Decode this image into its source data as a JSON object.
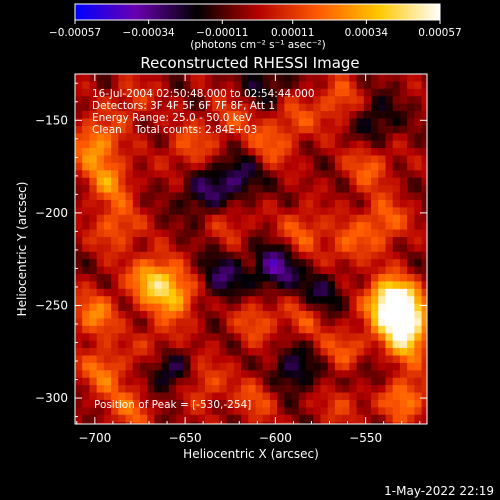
{
  "chart_data": {
    "type": "heatmap",
    "title": "Reconstructed RHESSI Image",
    "xlabel": "Heliocentric X (arcsec)",
    "ylabel": "Heliocentric Y (arcsec)",
    "xlim": [
      -711,
      -516
    ],
    "ylim": [
      -314,
      -125
    ],
    "xticks": [
      {
        "v": -700,
        "label": "−700"
      },
      {
        "v": -650,
        "label": "−650"
      },
      {
        "v": -600,
        "label": "−600"
      },
      {
        "v": -550,
        "label": "−550"
      }
    ],
    "yticks": [
      {
        "v": -150,
        "label": "−150"
      },
      {
        "v": -200,
        "label": "−200"
      },
      {
        "v": -250,
        "label": "−250"
      },
      {
        "v": -300,
        "label": "−300"
      }
    ],
    "colorbar": {
      "min": -0.00057,
      "max": 0.00057,
      "ticks": [
        {
          "v": -0.00057,
          "label": "−0.00057"
        },
        {
          "v": -0.00034,
          "label": "−0.00034"
        },
        {
          "v": -0.00011,
          "label": "−0.00011"
        },
        {
          "v": 0.00011,
          "label": "0.00011"
        },
        {
          "v": 0.00034,
          "label": "0.00034"
        },
        {
          "v": 0.00057,
          "label": "0.00057"
        }
      ],
      "unit": "(photons cm⁻² s⁻¹ asec⁻²)",
      "colors": [
        "#0000ff",
        "#6a00b0",
        "#000000",
        "#b40000",
        "#ff5a00",
        "#ffc800",
        "#ffffff"
      ]
    },
    "annotations": [
      "16-Jul-2004 02:50:48.000 to 02:54:44.000",
      "Detectors: 3F 4F 5F 6F 7F 8F, Att 1",
      "Energy Range: 25.0 - 50.0 keV",
      "Clean    Total counts: 2.84E+03"
    ],
    "peak_label": "Position of Peak = [-530,-254]",
    "peak": [
      -530,
      -254
    ],
    "hotspots": [
      {
        "x": -530,
        "y": -254,
        "v": 0.00057
      },
      {
        "x": -537,
        "y": -247,
        "v": 0.00048
      },
      {
        "x": -527,
        "y": -268,
        "v": 0.0004
      },
      {
        "x": -668,
        "y": -236,
        "v": 0.0004
      },
      {
        "x": -655,
        "y": -245,
        "v": 0.00034
      },
      {
        "x": -700,
        "y": -163,
        "v": 0.00034
      },
      {
        "x": -692,
        "y": -183,
        "v": 0.00028
      },
      {
        "x": -688,
        "y": -208,
        "v": 0.00024
      },
      {
        "x": -700,
        "y": -255,
        "v": 0.00028
      },
      {
        "x": -695,
        "y": -285,
        "v": 0.00026
      },
      {
        "x": -648,
        "y": -165,
        "v": 0.0002
      },
      {
        "x": -625,
        "y": -150,
        "v": 0.00016
      },
      {
        "x": -605,
        "y": -165,
        "v": 0.0002
      },
      {
        "x": -590,
        "y": -150,
        "v": 0.00018
      },
      {
        "x": -565,
        "y": -140,
        "v": 0.00022
      },
      {
        "x": -548,
        "y": -175,
        "v": 0.00022
      },
      {
        "x": -540,
        "y": -205,
        "v": 0.00026
      },
      {
        "x": -585,
        "y": -210,
        "v": 0.00022
      },
      {
        "x": -560,
        "y": -218,
        "v": 0.0002
      },
      {
        "x": -610,
        "y": -258,
        "v": 0.0002
      },
      {
        "x": -582,
        "y": -255,
        "v": 0.00022
      },
      {
        "x": -560,
        "y": -275,
        "v": 0.00024
      },
      {
        "x": -640,
        "y": -292,
        "v": 0.0002
      },
      {
        "x": -610,
        "y": -300,
        "v": 0.00018
      },
      {
        "x": -560,
        "y": -300,
        "v": 0.00024
      },
      {
        "x": -528,
        "y": -300,
        "v": 0.0003
      },
      {
        "x": -680,
        "y": -305,
        "v": 0.00022
      },
      {
        "x": -625,
        "y": -205,
        "v": 0.00014
      },
      {
        "x": -680,
        "y": -140,
        "v": 0.00016
      },
      {
        "x": -665,
        "y": -272,
        "v": 0.00018
      }
    ],
    "coldspots": [
      {
        "x": -620,
        "y": -180,
        "v": -0.00028
      },
      {
        "x": -600,
        "y": -230,
        "v": -0.00032
      },
      {
        "x": -575,
        "y": -245,
        "v": -0.00026
      },
      {
        "x": -660,
        "y": -285,
        "v": -0.00028
      },
      {
        "x": -630,
        "y": -235,
        "v": -0.00024
      },
      {
        "x": -640,
        "y": -190,
        "v": -0.00022
      },
      {
        "x": -555,
        "y": -290,
        "v": -0.00022
      },
      {
        "x": -545,
        "y": -150,
        "v": -0.0002
      },
      {
        "x": -590,
        "y": -285,
        "v": -0.00024
      },
      {
        "x": -605,
        "y": -130,
        "v": -0.00018
      }
    ]
  },
  "footer": {
    "timestamp": "1-May-2022 22:19"
  }
}
